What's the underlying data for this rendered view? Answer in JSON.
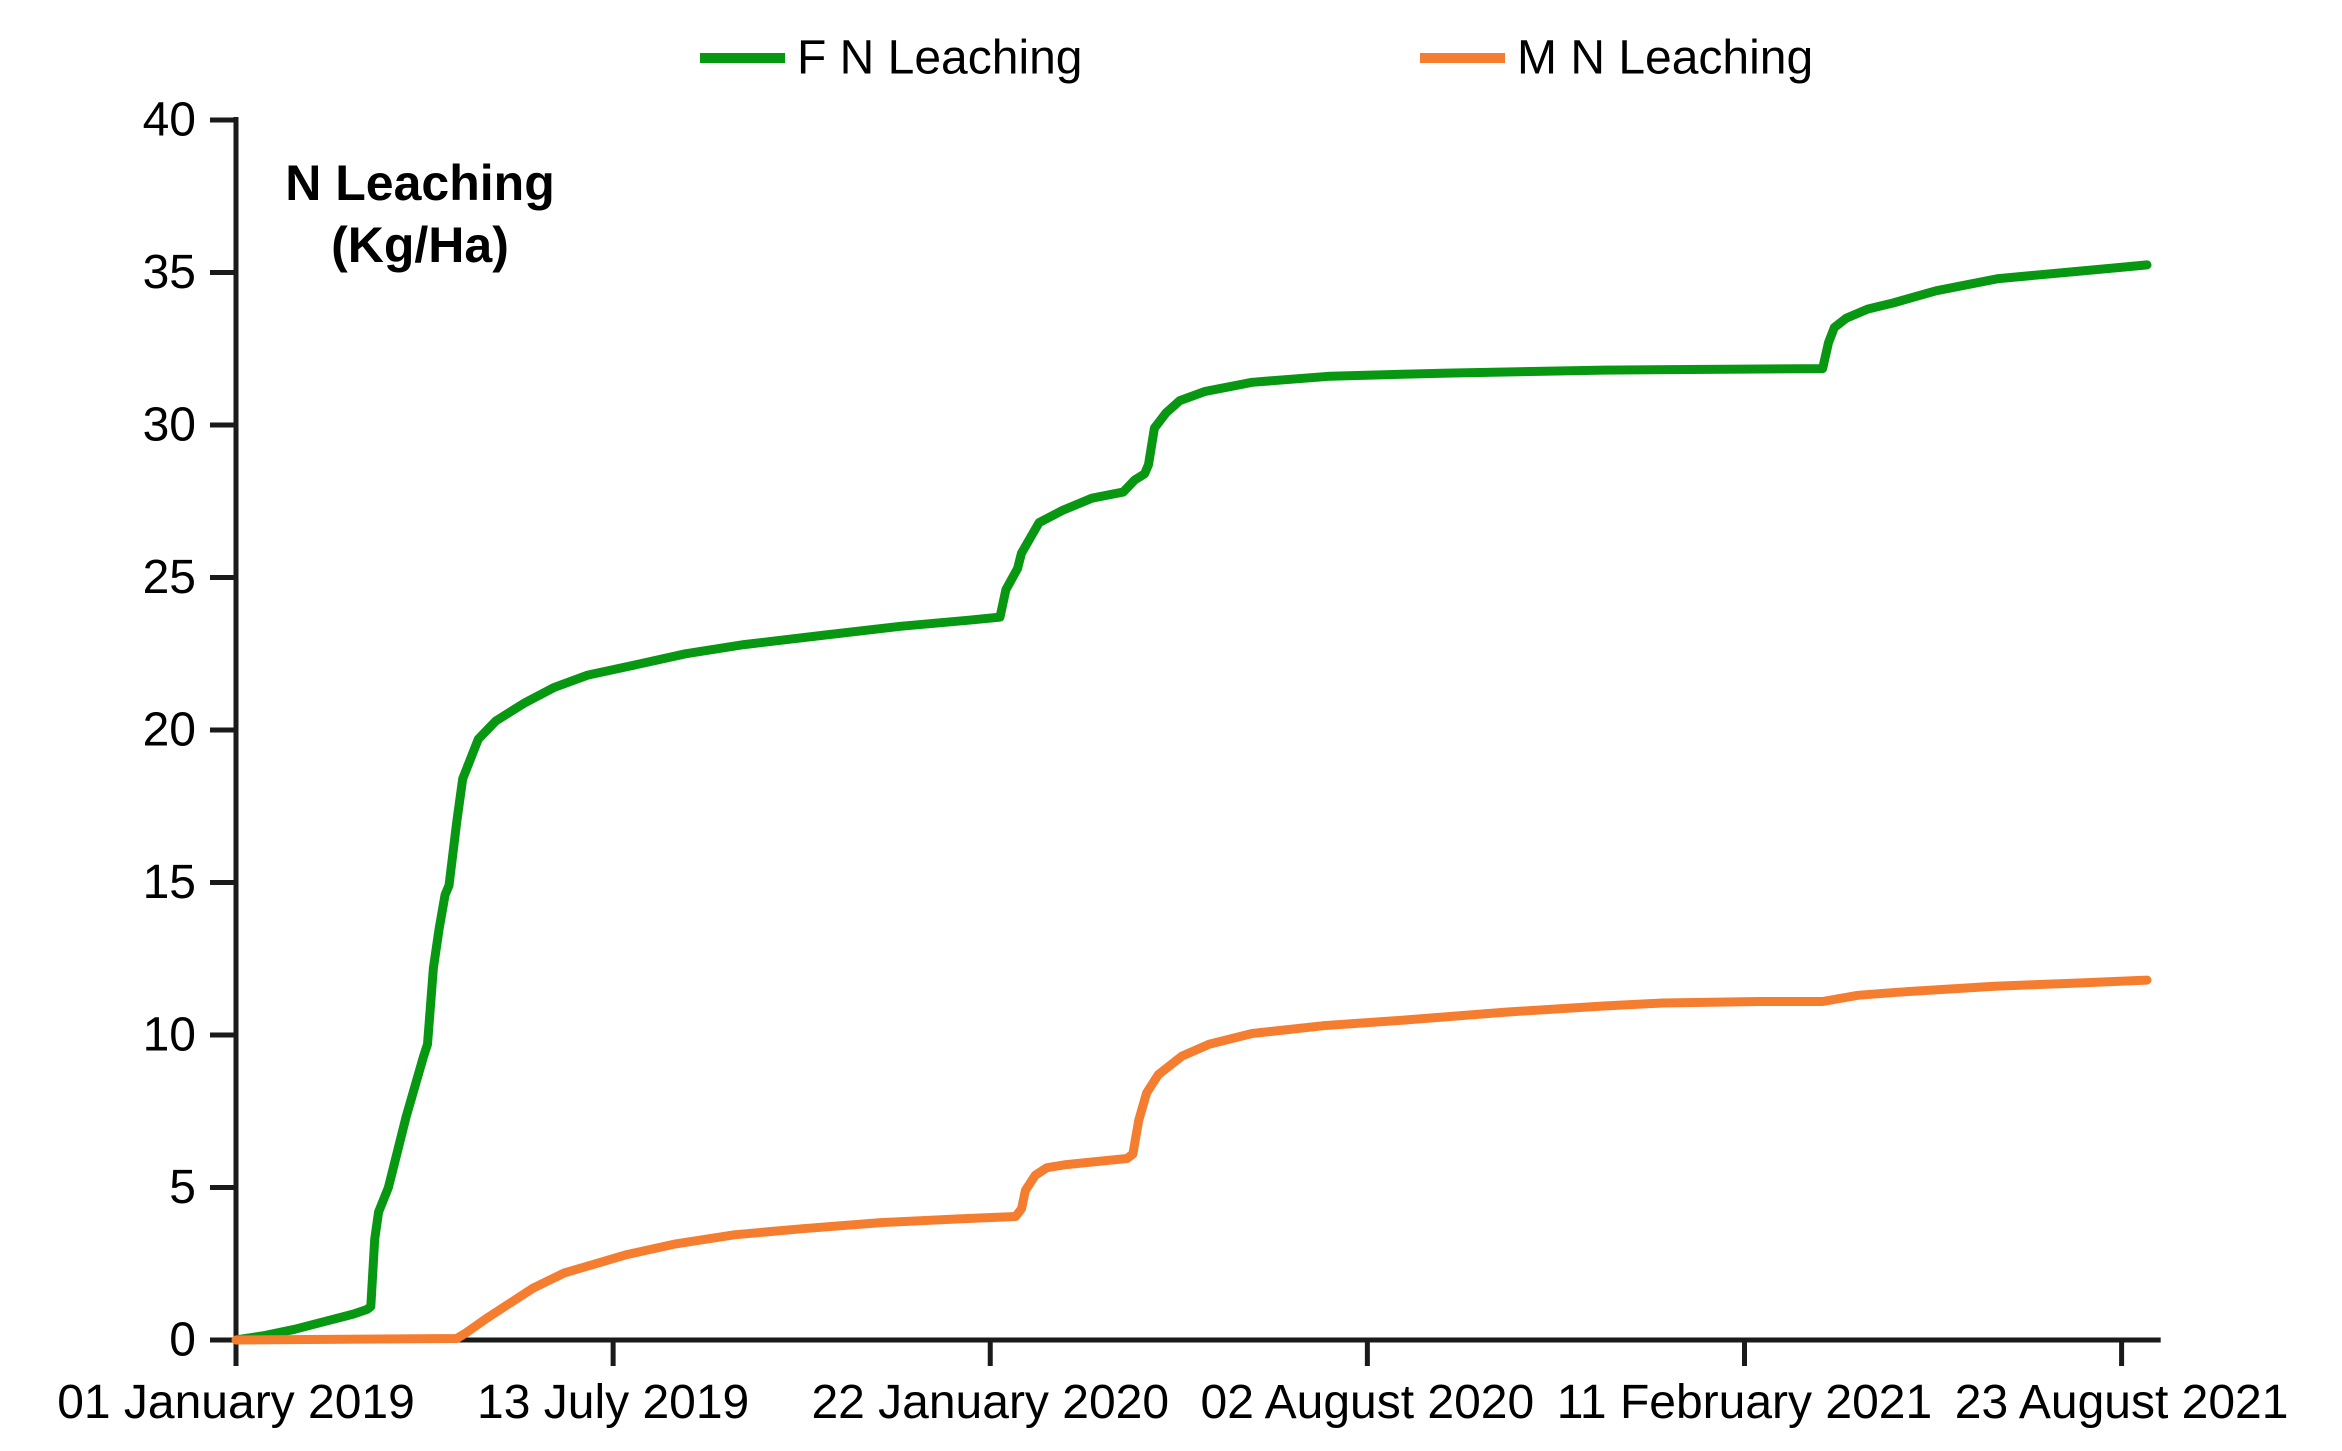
{
  "page": {
    "background": "#ffffff",
    "axis_color": "#1a1a1a",
    "text_color": "#000000"
  },
  "legend": {
    "items": [
      {
        "label": "F N Leaching",
        "color": "#089711"
      },
      {
        "label": "M N Leaching",
        "color": "#F57D2F"
      }
    ]
  },
  "axis_title": {
    "line1": "N Leaching",
    "line2": "(Kg/Ha)"
  },
  "chart_data": {
    "type": "line",
    "title": "",
    "xlabel": "",
    "ylabel": "N Leaching (Kg/Ha)",
    "grid": false,
    "legend_position": "top-center",
    "ylim": [
      0,
      40
    ],
    "y_ticks": [
      0,
      5,
      10,
      15,
      20,
      25,
      30,
      35,
      40
    ],
    "x_unit": "days since 01 January 2019",
    "x_range_days": [
      0,
      985
    ],
    "x_ticks": [
      {
        "day": 0,
        "label": "01 January 2019"
      },
      {
        "day": 193,
        "label": "13 July 2019"
      },
      {
        "day": 386,
        "label": "22 January 2020"
      },
      {
        "day": 579,
        "label": "02 August 2020"
      },
      {
        "day": 772,
        "label": "11 February 2021"
      },
      {
        "day": 965,
        "label": "23 August 2021"
      }
    ],
    "series": [
      {
        "name": "F N Leaching",
        "color": "#089711",
        "points": [
          [
            0,
            0
          ],
          [
            15,
            0.15
          ],
          [
            30,
            0.35
          ],
          [
            45,
            0.6
          ],
          [
            60,
            0.85
          ],
          [
            67,
            1.0
          ],
          [
            69,
            1.1
          ],
          [
            71,
            3.3
          ],
          [
            73,
            4.2
          ],
          [
            78,
            5.0
          ],
          [
            87,
            7.3
          ],
          [
            96,
            9.3
          ],
          [
            98,
            9.7
          ],
          [
            101,
            12.2
          ],
          [
            104,
            13.5
          ],
          [
            107,
            14.6
          ],
          [
            109,
            14.9
          ],
          [
            113,
            17.0
          ],
          [
            116,
            18.4
          ],
          [
            124,
            19.7
          ],
          [
            133,
            20.3
          ],
          [
            148,
            20.9
          ],
          [
            163,
            21.4
          ],
          [
            180,
            21.8
          ],
          [
            202,
            22.1
          ],
          [
            230,
            22.5
          ],
          [
            260,
            22.8
          ],
          [
            300,
            23.1
          ],
          [
            340,
            23.4
          ],
          [
            375,
            23.6
          ],
          [
            391,
            23.7
          ],
          [
            394,
            24.6
          ],
          [
            400,
            25.3
          ],
          [
            402,
            25.8
          ],
          [
            411,
            26.8
          ],
          [
            423,
            27.2
          ],
          [
            438,
            27.6
          ],
          [
            454,
            27.8
          ],
          [
            460,
            28.2
          ],
          [
            465,
            28.4
          ],
          [
            467,
            28.7
          ],
          [
            470,
            29.9
          ],
          [
            476,
            30.4
          ],
          [
            483,
            30.8
          ],
          [
            496,
            31.1
          ],
          [
            520,
            31.4
          ],
          [
            560,
            31.6
          ],
          [
            620,
            31.7
          ],
          [
            700,
            31.8
          ],
          [
            812,
            31.85
          ],
          [
            815,
            32.7
          ],
          [
            818,
            33.2
          ],
          [
            824,
            33.5
          ],
          [
            835,
            33.8
          ],
          [
            848,
            34.0
          ],
          [
            870,
            34.4
          ],
          [
            902,
            34.8
          ],
          [
            936,
            35.0
          ],
          [
            970,
            35.2
          ],
          [
            978,
            35.25
          ]
        ]
      },
      {
        "name": "M N Leaching",
        "color": "#F57D2F",
        "points": [
          [
            0,
            0
          ],
          [
            113,
            0.05
          ],
          [
            118,
            0.25
          ],
          [
            128,
            0.7
          ],
          [
            140,
            1.2
          ],
          [
            152,
            1.7
          ],
          [
            168,
            2.2
          ],
          [
            184,
            2.5
          ],
          [
            200,
            2.8
          ],
          [
            225,
            3.15
          ],
          [
            255,
            3.45
          ],
          [
            290,
            3.65
          ],
          [
            330,
            3.85
          ],
          [
            370,
            3.97
          ],
          [
            399,
            4.05
          ],
          [
            402,
            4.3
          ],
          [
            404,
            4.9
          ],
          [
            409,
            5.4
          ],
          [
            415,
            5.65
          ],
          [
            425,
            5.75
          ],
          [
            440,
            5.85
          ],
          [
            456,
            5.95
          ],
          [
            459,
            6.1
          ],
          [
            462,
            7.2
          ],
          [
            466,
            8.1
          ],
          [
            472,
            8.7
          ],
          [
            484,
            9.3
          ],
          [
            498,
            9.7
          ],
          [
            520,
            10.05
          ],
          [
            556,
            10.3
          ],
          [
            600,
            10.5
          ],
          [
            650,
            10.75
          ],
          [
            700,
            10.95
          ],
          [
            730,
            11.05
          ],
          [
            780,
            11.1
          ],
          [
            812,
            11.1
          ],
          [
            830,
            11.3
          ],
          [
            850,
            11.4
          ],
          [
            900,
            11.6
          ],
          [
            940,
            11.7
          ],
          [
            978,
            11.8
          ]
        ]
      }
    ]
  }
}
